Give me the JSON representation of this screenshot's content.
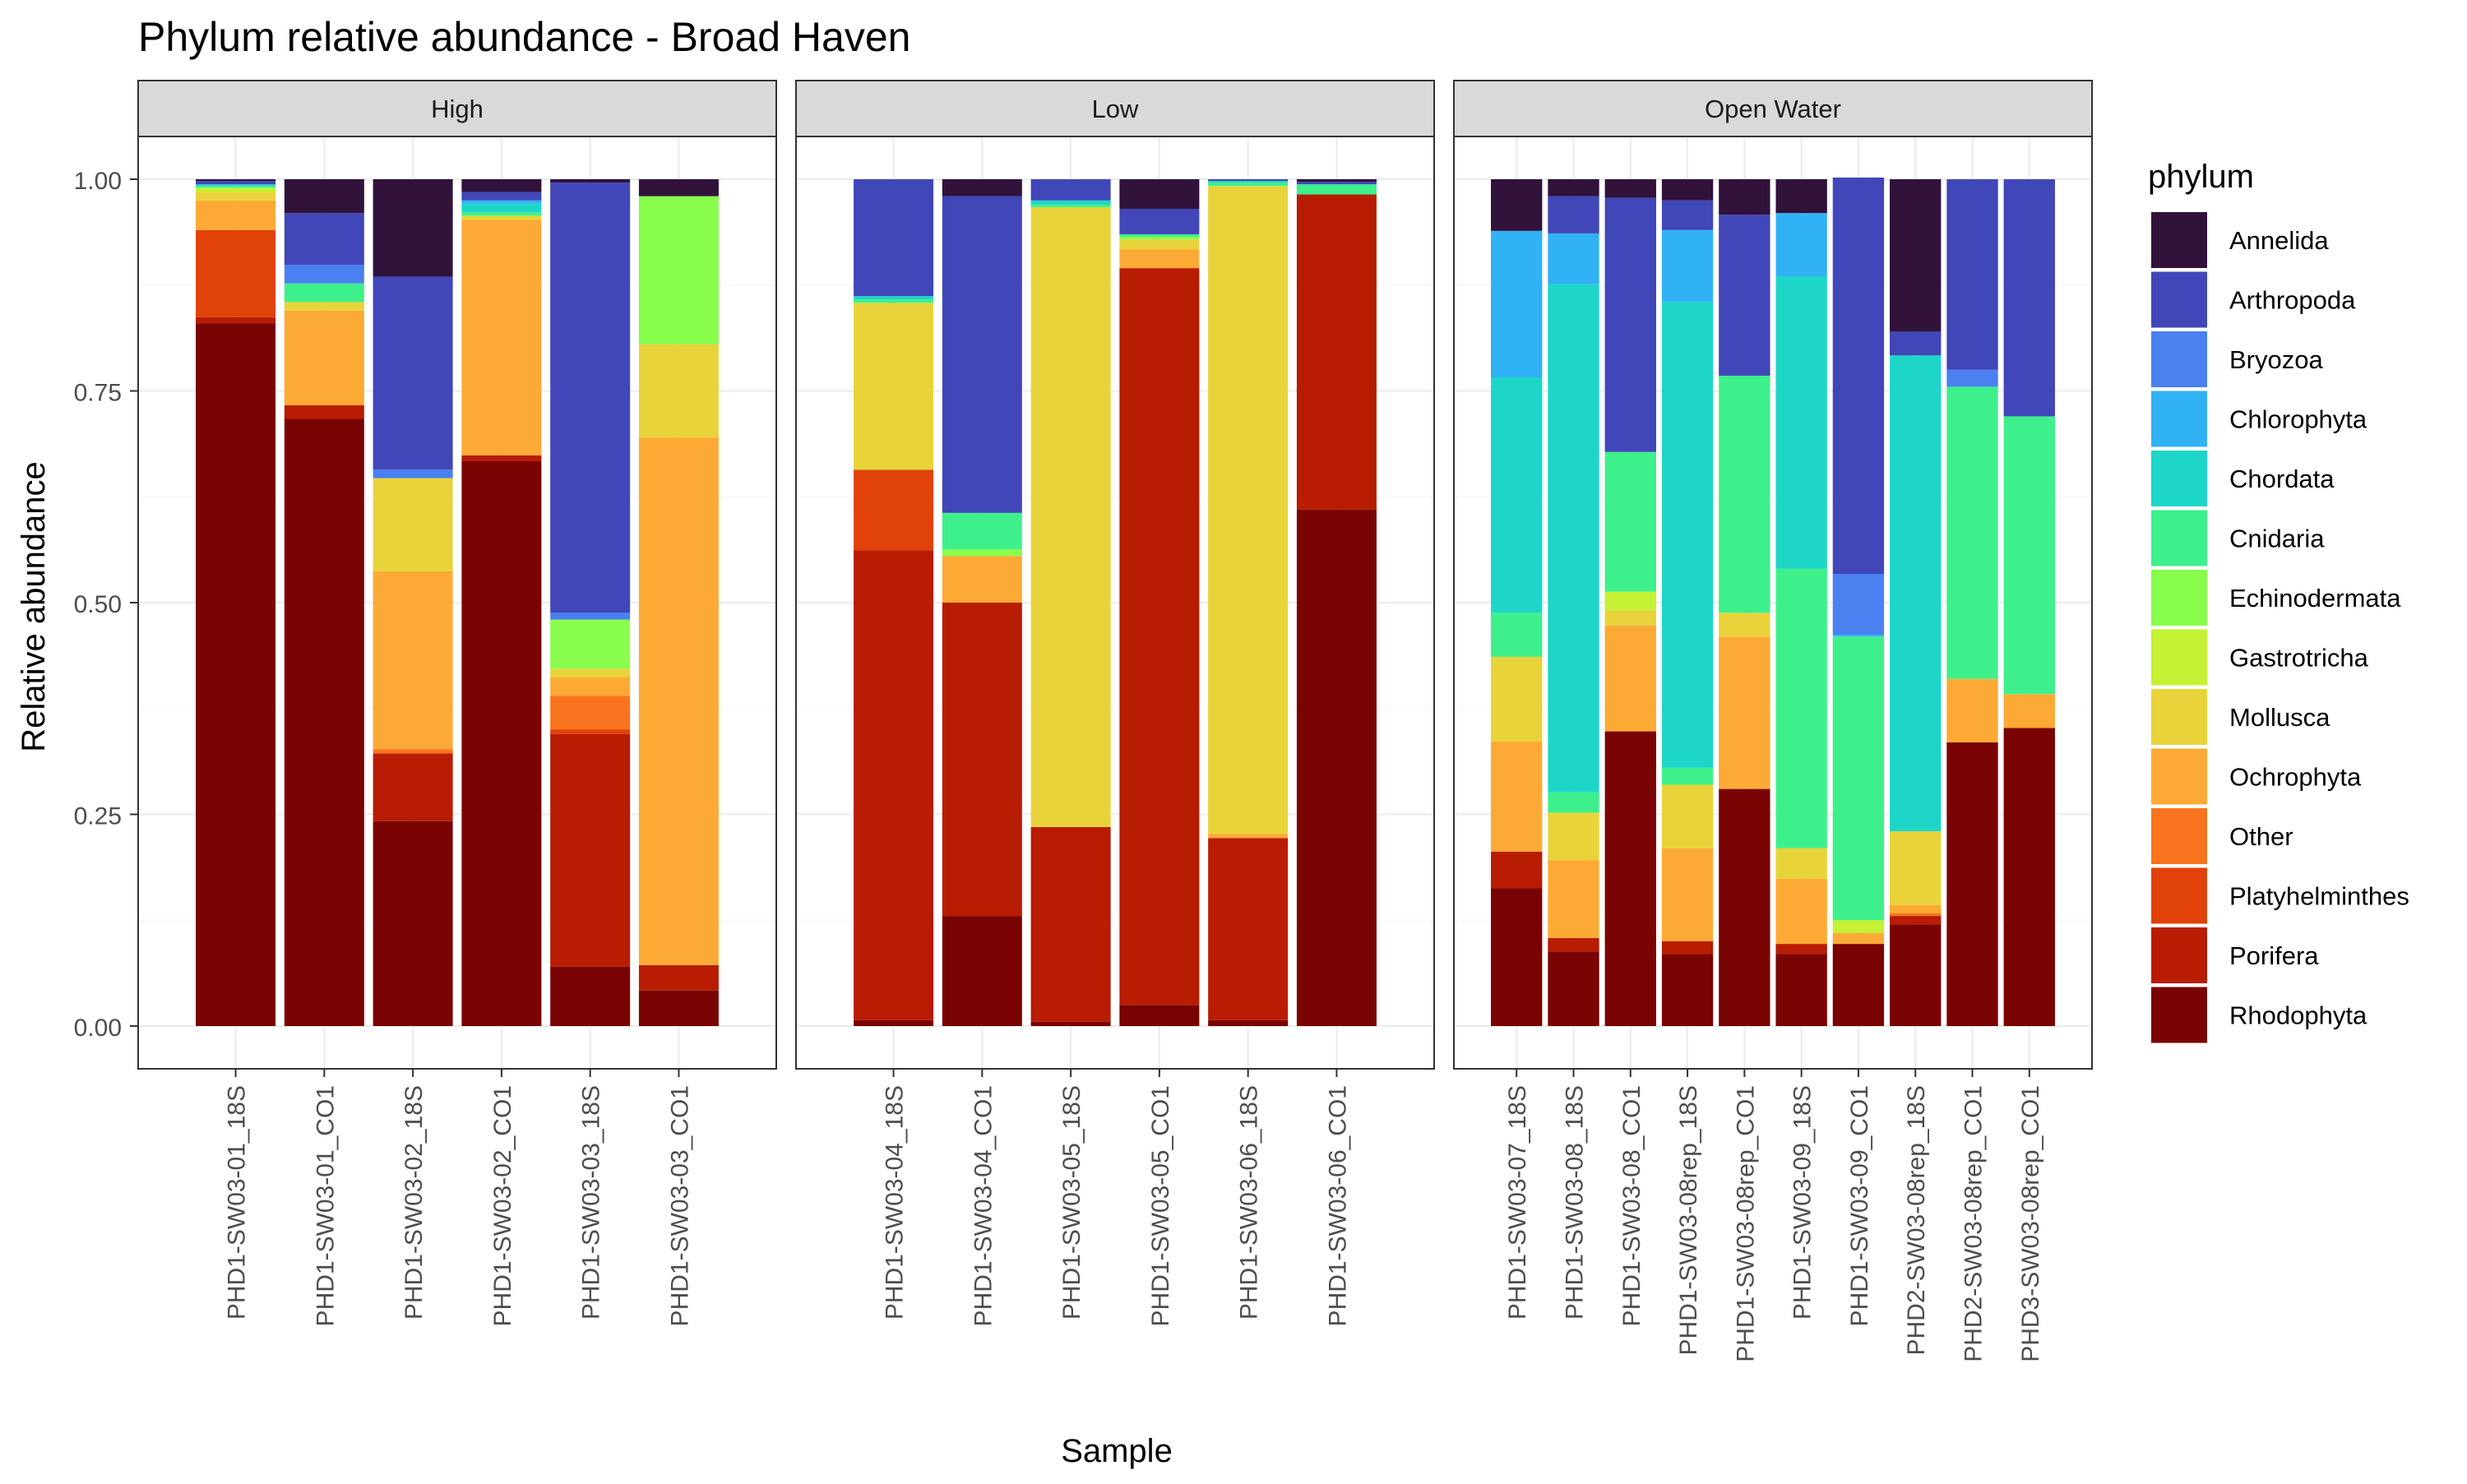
{
  "chart_data": {
    "type": "bar",
    "stacked": true,
    "title": "Phylum relative abundance - Broad Haven",
    "xlabel": "Sample",
    "ylabel": "Relative abundance",
    "ylim": [
      0,
      1
    ],
    "yticks": [
      "0.00",
      "0.25",
      "0.50",
      "0.75",
      "1.00"
    ],
    "legend_title": "phylum",
    "legend_position": "right",
    "grid": true,
    "stack_order": [
      "Rhodophyta",
      "Porifera",
      "Platyhelminthes",
      "Other",
      "Ochrophyta",
      "Mollusca",
      "Gastrotricha",
      "Echinodermata",
      "Cnidaria",
      "Chordata",
      "Chlorophyta",
      "Bryozoa",
      "Arthropoda",
      "Annelida"
    ],
    "legend": [
      {
        "name": "Annelida",
        "color": "#30123b"
      },
      {
        "name": "Arthropoda",
        "color": "#4146b8"
      },
      {
        "name": "Bryozoa",
        "color": "#4a80f0"
      },
      {
        "name": "Chlorophyta",
        "color": "#31b2f5"
      },
      {
        "name": "Chordata",
        "color": "#1ed6c8"
      },
      {
        "name": "Cnidaria",
        "color": "#3ef08c"
      },
      {
        "name": "Echinodermata",
        "color": "#88fd4c"
      },
      {
        "name": "Gastrotricha",
        "color": "#c4f133"
      },
      {
        "name": "Mollusca",
        "color": "#e8d43a"
      },
      {
        "name": "Ochrophyta",
        "color": "#fcaa35"
      },
      {
        "name": "Other",
        "color": "#f8731e"
      },
      {
        "name": "Platyhelminthes",
        "color": "#e0420a"
      },
      {
        "name": "Porifera",
        "color": "#b81c03"
      },
      {
        "name": "Rhodophyta",
        "color": "#7a0403"
      }
    ],
    "facets": [
      {
        "label": "High",
        "samples": [
          {
            "name": "PHD1-SW03-01_18S",
            "values": {
              "Rhodophyta": 0.83,
              "Porifera": 0.007,
              "Platyhelminthes": 0.103,
              "Ochrophyta": 0.035,
              "Mollusca": 0.01,
              "Gastrotricha": 0.005,
              "Cnidaria": 0.002,
              "Chordata": 0.002,
              "Arthropoda": 0.004,
              "Annelida": 0.002
            }
          },
          {
            "name": "PHD1-SW03-01_CO1",
            "values": {
              "Rhodophyta": 0.717,
              "Porifera": 0.016,
              "Ochrophyta": 0.112,
              "Mollusca": 0.01,
              "Cnidaria": 0.022,
              "Bryozoa": 0.022,
              "Arthropoda": 0.061,
              "Annelida": 0.04
            }
          },
          {
            "name": "PHD1-SW03-02_18S",
            "values": {
              "Rhodophyta": 0.242,
              "Porifera": 0.08,
              "Other": 0.005,
              "Ochrophyta": 0.21,
              "Mollusca": 0.11,
              "Bryozoa": 0.01,
              "Arthropoda": 0.228,
              "Annelida": 0.115
            }
          },
          {
            "name": "PHD1-SW03-02_CO1",
            "values": {
              "Rhodophyta": 0.667,
              "Porifera": 0.007,
              "Ochrophyta": 0.278,
              "Mollusca": 0.005,
              "Cnidaria": 0.004,
              "Chordata": 0.01,
              "Chlorophyta": 0.004,
              "Arthropoda": 0.01,
              "Annelida": 0.015
            }
          },
          {
            "name": "PHD1-SW03-03_18S",
            "values": {
              "Rhodophyta": 0.07,
              "Porifera": 0.275,
              "Platyhelminthes": 0.005,
              "Other": 0.04,
              "Ochrophyta": 0.022,
              "Mollusca": 0.01,
              "Echinodermata": 0.058,
              "Bryozoa": 0.008,
              "Arthropoda": 0.508,
              "Annelida": 0.004
            }
          },
          {
            "name": "PHD1-SW03-03_CO1",
            "values": {
              "Rhodophyta": 0.042,
              "Porifera": 0.03,
              "Ochrophyta": 0.623,
              "Mollusca": 0.11,
              "Echinodermata": 0.175,
              "Annelida": 0.02
            }
          }
        ]
      },
      {
        "label": "Low",
        "samples": [
          {
            "name": "PHD1-SW03-04_18S",
            "values": {
              "Rhodophyta": 0.007,
              "Porifera": 0.555,
              "Platyhelminthes": 0.095,
              "Mollusca": 0.197,
              "Cnidaria": 0.004,
              "Chordata": 0.004,
              "Arthropoda": 0.138
            }
          },
          {
            "name": "PHD1-SW03-04_CO1",
            "values": {
              "Rhodophyta": 0.13,
              "Porifera": 0.37,
              "Ochrophyta": 0.055,
              "Echinodermata": 0.008,
              "Cnidaria": 0.043,
              "Arthropoda": 0.374,
              "Annelida": 0.02
            }
          },
          {
            "name": "PHD1-SW03-05_18S",
            "values": {
              "Rhodophyta": 0.005,
              "Porifera": 0.23,
              "Mollusca": 0.732,
              "Cnidaria": 0.003,
              "Chordata": 0.005,
              "Arthropoda": 0.025
            }
          },
          {
            "name": "PHD1-SW03-05_CO1",
            "values": {
              "Rhodophyta": 0.025,
              "Porifera": 0.87,
              "Ochrophyta": 0.022,
              "Mollusca": 0.012,
              "Echinodermata": 0.003,
              "Cnidaria": 0.003,
              "Arthropoda": 0.03,
              "Annelida": 0.035
            }
          },
          {
            "name": "PHD1-SW03-06_18S",
            "values": {
              "Rhodophyta": 0.007,
              "Porifera": 0.215,
              "Ochrophyta": 0.005,
              "Mollusca": 0.765,
              "Cnidaria": 0.004,
              "Chordata": 0.002,
              "Arthropoda": 0.002
            }
          },
          {
            "name": "PHD1-SW03-06_CO1",
            "values": {
              "Rhodophyta": 0.61,
              "Porifera": 0.372,
              "Cnidaria": 0.012,
              "Arthropoda": 0.003,
              "Annelida": 0.003
            }
          }
        ]
      },
      {
        "label": "Open Water",
        "samples": [
          {
            "name": "PHD1-SW03-07_18S",
            "values": {
              "Rhodophyta": 0.163,
              "Porifera": 0.043,
              "Ochrophyta": 0.13,
              "Mollusca": 0.1,
              "Cnidaria": 0.052,
              "Chordata": 0.278,
              "Chlorophyta": 0.173,
              "Arthropoda": 0.0,
              "Annelida": 0.061
            }
          },
          {
            "name": "PHD1-SW03-08_18S",
            "values": {
              "Rhodophyta": 0.088,
              "Porifera": 0.016,
              "Ochrophyta": 0.092,
              "Mollusca": 0.056,
              "Cnidaria": 0.024,
              "Chordata": 0.6,
              "Chlorophyta": 0.06,
              "Arthropoda": 0.044,
              "Annelida": 0.02
            }
          },
          {
            "name": "PHD1-SW03-08_CO1",
            "values": {
              "Rhodophyta": 0.348,
              "Ochrophyta": 0.125,
              "Mollusca": 0.018,
              "Gastrotricha": 0.022,
              "Cnidaria": 0.165,
              "Arthropoda": 0.3,
              "Annelida": 0.022
            }
          },
          {
            "name": "PHD1-SW03-08rep_18S",
            "values": {
              "Rhodophyta": 0.085,
              "Porifera": 0.015,
              "Ochrophyta": 0.11,
              "Mollusca": 0.075,
              "Cnidaria": 0.02,
              "Chordata": 0.55,
              "Chlorophyta": 0.085,
              "Arthropoda": 0.035,
              "Annelida": 0.025
            }
          },
          {
            "name": "PHD1-SW03-08rep_CO1",
            "values": {
              "Rhodophyta": 0.28,
              "Ochrophyta": 0.18,
              "Mollusca": 0.028,
              "Cnidaria": 0.28,
              "Arthropoda": 0.19,
              "Annelida": 0.042
            }
          },
          {
            "name": "PHD1-SW03-09_18S",
            "values": {
              "Rhodophyta": 0.085,
              "Porifera": 0.012,
              "Ochrophyta": 0.077,
              "Mollusca": 0.036,
              "Cnidaria": 0.33,
              "Chordata": 0.345,
              "Chlorophyta": 0.075,
              "Annelida": 0.04
            }
          },
          {
            "name": "PHD1-SW03-09_CO1",
            "values": {
              "Rhodophyta": 0.097,
              "Ochrophyta": 0.013,
              "Gastrotricha": 0.015,
              "Cnidaria": 0.335,
              "Chlorophyta": 0.002,
              "Bryozoa": 0.072,
              "Arthropoda": 0.468
            }
          },
          {
            "name": "PHD2-SW03-08rep_18S",
            "values": {
              "Rhodophyta": 0.12,
              "Porifera": 0.01,
              "Other": 0.003,
              "Ochrophyta": 0.01,
              "Mollusca": 0.087,
              "Chordata": 0.562,
              "Arthropoda": 0.028,
              "Annelida": 0.18
            }
          },
          {
            "name": "PHD2-SW03-08rep_CO1",
            "values": {
              "Rhodophyta": 0.335,
              "Ochrophyta": 0.075,
              "Cnidaria": 0.345,
              "Bryozoa": 0.02,
              "Arthropoda": 0.225
            }
          },
          {
            "name": "PHD3-SW03-08rep_CO1",
            "values": {
              "Rhodophyta": 0.352,
              "Ochrophyta": 0.04,
              "Cnidaria": 0.328,
              "Arthropoda": 0.28
            }
          }
        ]
      }
    ]
  }
}
